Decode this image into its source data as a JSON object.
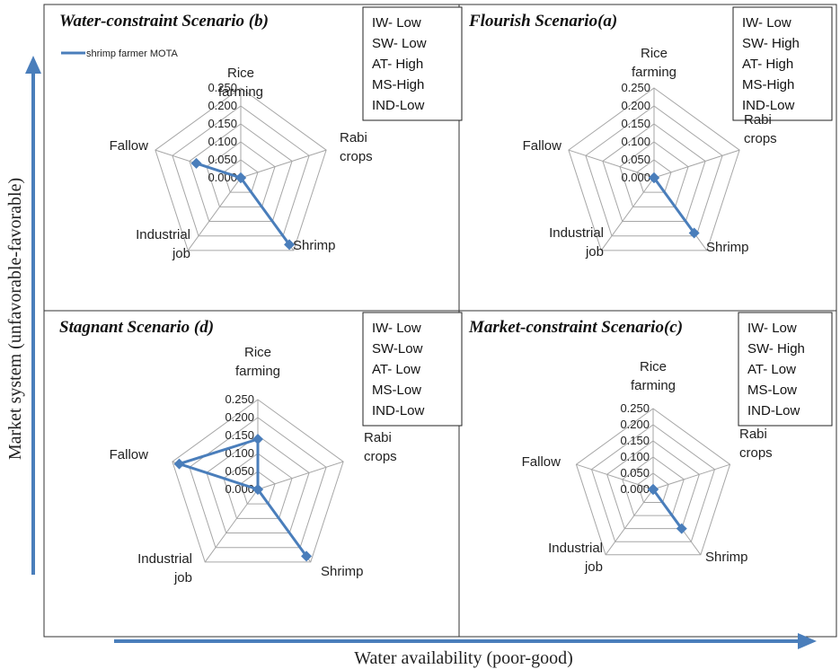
{
  "legend": {
    "label": "shrimp farmer MOTA",
    "color": "#4A7EBB"
  },
  "x_axis_title": "Water availability (poor-good)",
  "y_axis_title": "Market system (unfavorable-favorable)",
  "ticks": [
    "0.000",
    "0.050",
    "0.100",
    "0.150",
    "0.200",
    "0.250"
  ],
  "chart_data": [
    {
      "type": "radar",
      "title": "Water-constraint Scenario (b)",
      "conditions": [
        "IW- Low",
        "SW- Low",
        "AT- High",
        "MS-High",
        "IND-Low"
      ],
      "categories": [
        [
          "Rice",
          "farming"
        ],
        [
          "Rabi",
          "crops"
        ],
        [
          "Shrimp"
        ],
        [
          "Industrial",
          "job"
        ],
        [
          "Fallow"
        ]
      ],
      "range": [
        0,
        0.25
      ],
      "series": [
        {
          "name": "shrimp farmer MOTA",
          "values": [
            0.0,
            0.0,
            0.23,
            0.0,
            0.13
          ]
        }
      ]
    },
    {
      "type": "radar",
      "title": "Flourish Scenario(a)",
      "conditions": [
        "IW- Low",
        "SW- High",
        "AT- High",
        "MS-High",
        "IND-Low"
      ],
      "categories": [
        [
          "Rice",
          "farming"
        ],
        [
          "Rabi",
          "crops"
        ],
        [
          "Shrimp"
        ],
        [
          "Industrial",
          "job"
        ],
        [
          "Fallow"
        ]
      ],
      "range": [
        0,
        0.25
      ],
      "series": [
        {
          "name": "shrimp farmer MOTA",
          "values": [
            0.0,
            0.0,
            0.19,
            0.0,
            0.0
          ]
        }
      ]
    },
    {
      "type": "radar",
      "title": "Stagnant  Scenario (d)",
      "conditions": [
        "IW- Low",
        "SW-Low",
        "AT- Low",
        "MS-Low",
        "IND-Low"
      ],
      "categories": [
        [
          "Rice",
          "farming"
        ],
        [
          "Rabi",
          "crops"
        ],
        [
          "Shrimp"
        ],
        [
          "Industrial",
          "job"
        ],
        [
          "Fallow"
        ]
      ],
      "range": [
        0,
        0.25
      ],
      "series": [
        {
          "name": "shrimp farmer MOTA",
          "values": [
            0.14,
            0.0,
            0.23,
            0.0,
            0.23
          ]
        }
      ]
    },
    {
      "type": "radar",
      "title": "Market-constraint Scenario(c)",
      "conditions": [
        "IW- Low",
        "SW- High",
        "AT- Low",
        "MS-Low",
        "IND-Low"
      ],
      "categories": [
        [
          "Rice",
          "farming"
        ],
        [
          "Rabi",
          "crops"
        ],
        [
          "Shrimp"
        ],
        [
          "Industrial",
          "job"
        ],
        [
          "Fallow"
        ]
      ],
      "range": [
        0,
        0.25
      ],
      "series": [
        {
          "name": "shrimp farmer MOTA",
          "values": [
            0.0,
            0.0,
            0.15,
            0.0,
            0.0
          ]
        }
      ]
    }
  ]
}
